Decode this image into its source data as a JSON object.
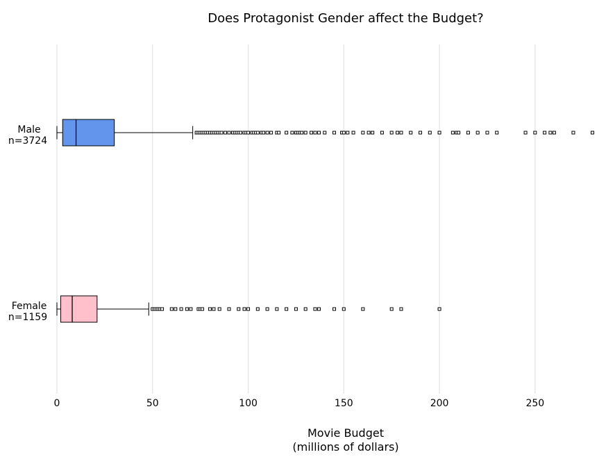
{
  "chart_data": {
    "type": "boxplot",
    "orientation": "horizontal",
    "title": "Does Protagonist Gender affect the Budget?",
    "xlabel": [
      "Movie Budget",
      "(millions of dollars)"
    ],
    "xlim": [
      0,
      282
    ],
    "xticks": [
      0,
      50,
      100,
      150,
      200,
      250
    ],
    "grid": true,
    "series": [
      {
        "name": "Male",
        "label": [
          "Male",
          "n=3724"
        ],
        "color": "#6495ed",
        "whisker_low": 0,
        "q1": 3,
        "median": 10,
        "q3": 30,
        "whisker_high": 71,
        "outliers": [
          73,
          74,
          75,
          76,
          77,
          78,
          79,
          80,
          81,
          82,
          83,
          84,
          85,
          86,
          88,
          90,
          92,
          93,
          94,
          95,
          96,
          98,
          99,
          100,
          102,
          103,
          104,
          105,
          107,
          108,
          110,
          112,
          115,
          116,
          120,
          123,
          125,
          126,
          127,
          128,
          130,
          133,
          135,
          137,
          140,
          145,
          149,
          150,
          152,
          155,
          160,
          163,
          165,
          170,
          175,
          178,
          180,
          185,
          190,
          195,
          200,
          207,
          209,
          210,
          215,
          220,
          225,
          230,
          245,
          250,
          255,
          258,
          260,
          270,
          280
        ]
      },
      {
        "name": "Female",
        "label": [
          "Female",
          "n=1159"
        ],
        "color": "#ffc0cb",
        "whisker_low": 0,
        "q1": 2,
        "median": 8,
        "q3": 21,
        "whisker_high": 48,
        "outliers": [
          50,
          51,
          52,
          53,
          54,
          55,
          60,
          62,
          65,
          68,
          70,
          74,
          75,
          76,
          80,
          82,
          85,
          90,
          95,
          98,
          100,
          105,
          110,
          115,
          120,
          125,
          130,
          135,
          137,
          145,
          150,
          160,
          175,
          180,
          200
        ]
      }
    ]
  }
}
